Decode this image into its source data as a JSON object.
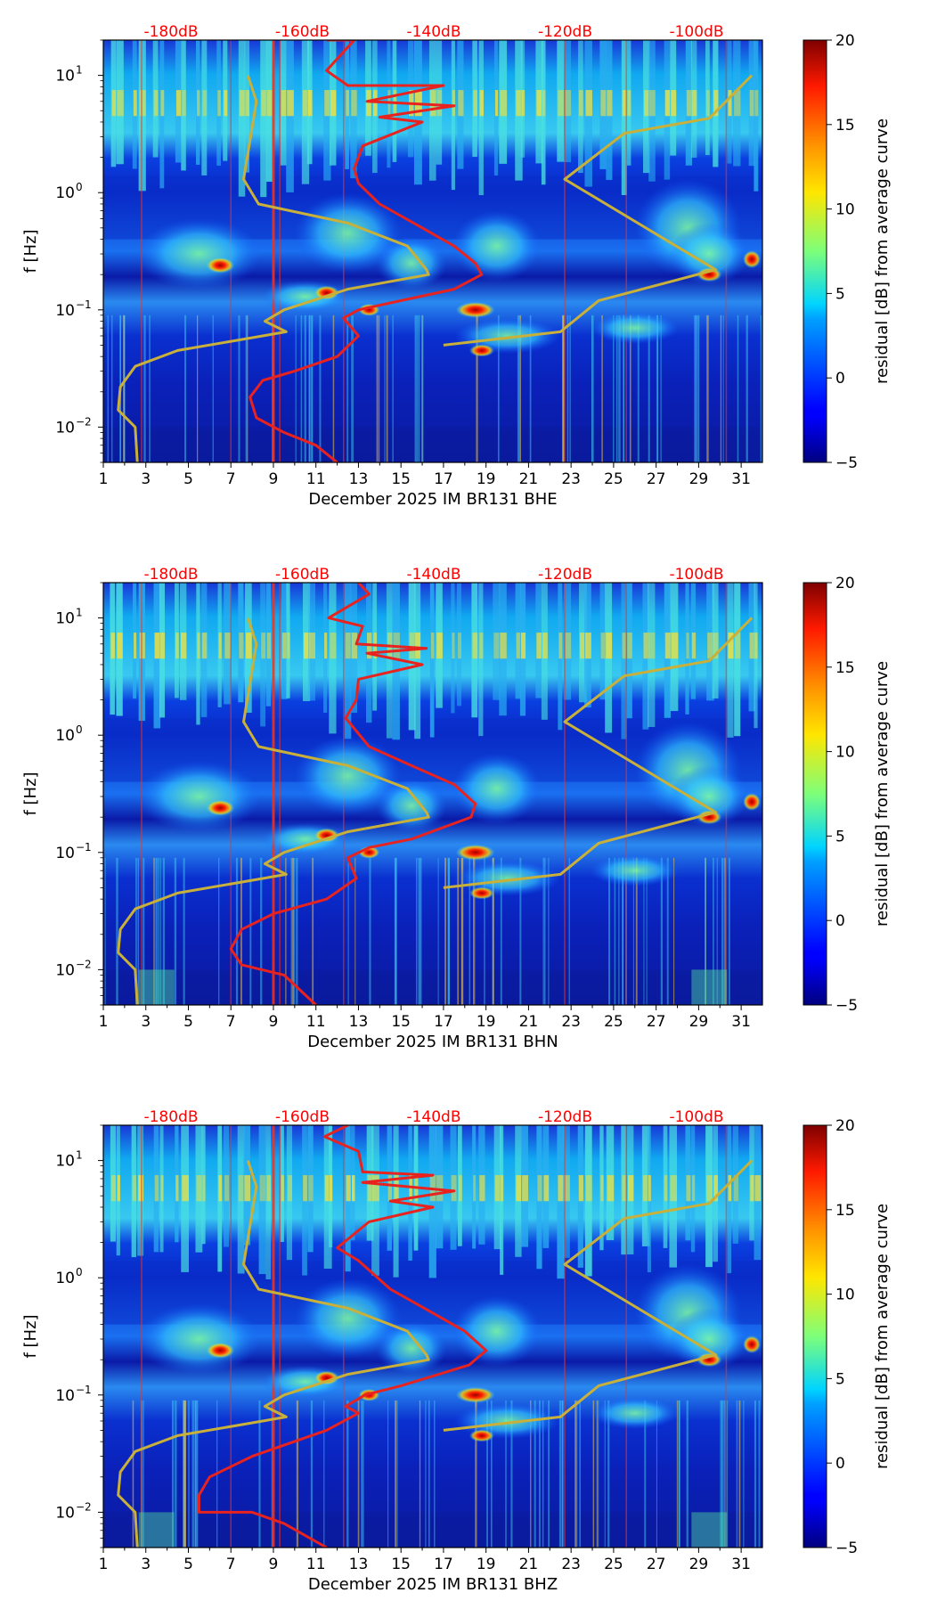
{
  "colors": {
    "red_curve": "#e8231f",
    "yellow_curve": "#c8b03a",
    "day_stripe": "#ff3010"
  },
  "chart_data": [
    {
      "type": "heatmap",
      "xlabel": "December 2025 IM BR131  BHE",
      "ylabel": "f [Hz]",
      "colorbar_label": "residual [dB] from average curve",
      "colorbar_ticks": [
        "−5",
        "0",
        "5",
        "10",
        "15",
        "20"
      ],
      "clim": [
        -5,
        20
      ],
      "x_ticks": [
        "1",
        "3",
        "5",
        "7",
        "9",
        "11",
        "13",
        "15",
        "17",
        "19",
        "21",
        "23",
        "25",
        "27",
        "29",
        "31"
      ],
      "xlim": [
        1,
        32
      ],
      "y_ticks": [
        {
          "mant": "10",
          "exp": "1"
        },
        {
          "mant": "10",
          "exp": "0"
        },
        {
          "mant": "10",
          "exp": "−1"
        },
        {
          "mant": "10",
          "exp": "−2"
        }
      ],
      "ylim": [
        0.005,
        20
      ],
      "y_scale": "log",
      "top_labels": [
        "-180dB",
        "-160dB",
        "-140dB",
        "-120dB",
        "-100dB"
      ],
      "red_curve": [
        [
          11.5,
          20
        ],
        [
          12.8,
          20
        ],
        [
          11.5,
          11
        ],
        [
          12.5,
          8.2
        ],
        [
          17.0,
          8.2
        ],
        [
          13.4,
          6
        ],
        [
          17.5,
          5.5
        ],
        [
          14.0,
          4.4
        ],
        [
          16.0,
          4.0
        ],
        [
          13.2,
          2.5
        ],
        [
          12.8,
          1.6
        ],
        [
          13.0,
          1.2
        ],
        [
          14.0,
          0.8
        ],
        [
          16.0,
          0.5
        ],
        [
          17.5,
          0.35
        ],
        [
          18.5,
          0.25
        ],
        [
          18.8,
          0.2
        ],
        [
          17.5,
          0.15
        ],
        [
          15.0,
          0.12
        ],
        [
          13.0,
          0.1
        ],
        [
          12.3,
          0.085
        ],
        [
          13.0,
          0.06
        ],
        [
          12.0,
          0.04
        ],
        [
          10.0,
          0.03
        ],
        [
          8.5,
          0.025
        ],
        [
          7.9,
          0.018
        ],
        [
          8.2,
          0.012
        ],
        [
          9.5,
          0.009
        ],
        [
          11.0,
          0.007
        ],
        [
          12.0,
          0.005
        ]
      ],
      "yellow_curve": [
        [
          7.8,
          10
        ],
        [
          8.2,
          6
        ],
        [
          7.6,
          1.3
        ],
        [
          8.3,
          0.8
        ],
        [
          12.5,
          0.55
        ],
        [
          15.3,
          0.35
        ],
        [
          16.2,
          0.22
        ],
        [
          16.3,
          0.2
        ],
        [
          12.5,
          0.15
        ],
        [
          9.5,
          0.1
        ],
        [
          8.6,
          0.08
        ],
        [
          9.6,
          0.065
        ],
        [
          8.5,
          0.06
        ],
        [
          4.5,
          0.045
        ],
        [
          2.5,
          0.033
        ],
        [
          1.8,
          0.022
        ],
        [
          1.7,
          0.014
        ],
        [
          2.5,
          0.01
        ],
        [
          2.6,
          0.005
        ]
      ],
      "yellow_curve_right": [
        [
          17.0,
          0.05
        ],
        [
          22.5,
          0.065
        ],
        [
          24.3,
          0.12
        ],
        [
          29.8,
          0.22
        ],
        [
          22.7,
          1.3
        ],
        [
          25.5,
          3.2
        ],
        [
          29.5,
          4.3
        ],
        [
          31.5,
          10
        ]
      ]
    },
    {
      "type": "heatmap",
      "xlabel": "December 2025 IM BR131  BHN",
      "ylabel": "f [Hz]",
      "colorbar_label": "residual [dB] from average curve",
      "colorbar_ticks": [
        "−5",
        "0",
        "5",
        "10",
        "15",
        "20"
      ],
      "clim": [
        -5,
        20
      ],
      "x_ticks": [
        "1",
        "3",
        "5",
        "7",
        "9",
        "11",
        "13",
        "15",
        "17",
        "19",
        "21",
        "23",
        "25",
        "27",
        "29",
        "31"
      ],
      "xlim": [
        1,
        32
      ],
      "y_ticks": [
        {
          "mant": "10",
          "exp": "1"
        },
        {
          "mant": "10",
          "exp": "0"
        },
        {
          "mant": "10",
          "exp": "−1"
        },
        {
          "mant": "10",
          "exp": "−2"
        }
      ],
      "ylim": [
        0.005,
        20
      ],
      "y_scale": "log",
      "top_labels": [
        "-180dB",
        "-160dB",
        "-140dB",
        "-120dB",
        "-100dB"
      ],
      "red_curve": [
        [
          13.0,
          20
        ],
        [
          13.5,
          16
        ],
        [
          11.6,
          10
        ],
        [
          13.2,
          8.5
        ],
        [
          12.9,
          6
        ],
        [
          16.2,
          5.5
        ],
        [
          13.4,
          5
        ],
        [
          16.0,
          4.0
        ],
        [
          13.0,
          3
        ],
        [
          12.9,
          2
        ],
        [
          12.4,
          1.4
        ],
        [
          13.5,
          0.8
        ],
        [
          15.5,
          0.55
        ],
        [
          17.5,
          0.38
        ],
        [
          18.5,
          0.26
        ],
        [
          18.3,
          0.2
        ],
        [
          15.5,
          0.13
        ],
        [
          13.5,
          0.11
        ],
        [
          12.5,
          0.09
        ],
        [
          12.9,
          0.06
        ],
        [
          11.5,
          0.04
        ],
        [
          9.0,
          0.03
        ],
        [
          7.5,
          0.022
        ],
        [
          7.0,
          0.015
        ],
        [
          7.5,
          0.011
        ],
        [
          9.5,
          0.009
        ],
        [
          11.0,
          0.005
        ]
      ],
      "yellow_curve": [
        [
          7.8,
          10
        ],
        [
          8.2,
          6
        ],
        [
          7.6,
          1.3
        ],
        [
          8.3,
          0.8
        ],
        [
          12.5,
          0.55
        ],
        [
          15.3,
          0.35
        ],
        [
          16.2,
          0.22
        ],
        [
          16.3,
          0.2
        ],
        [
          12.5,
          0.15
        ],
        [
          9.5,
          0.1
        ],
        [
          8.6,
          0.08
        ],
        [
          9.6,
          0.065
        ],
        [
          8.5,
          0.06
        ],
        [
          4.5,
          0.045
        ],
        [
          2.5,
          0.033
        ],
        [
          1.8,
          0.022
        ],
        [
          1.7,
          0.014
        ],
        [
          2.5,
          0.01
        ],
        [
          2.6,
          0.005
        ]
      ],
      "yellow_curve_right": [
        [
          17.0,
          0.05
        ],
        [
          22.5,
          0.065
        ],
        [
          24.3,
          0.12
        ],
        [
          29.8,
          0.22
        ],
        [
          22.7,
          1.3
        ],
        [
          25.5,
          3.2
        ],
        [
          29.5,
          4.3
        ],
        [
          31.5,
          10
        ]
      ]
    },
    {
      "type": "heatmap",
      "xlabel": "December 2025 IM BR131  BHZ",
      "ylabel": "f [Hz]",
      "colorbar_label": "residual [dB] from average curve",
      "colorbar_ticks": [
        "−5",
        "0",
        "5",
        "10",
        "15",
        "20"
      ],
      "clim": [
        -5,
        20
      ],
      "x_ticks": [
        "1",
        "3",
        "5",
        "7",
        "9",
        "11",
        "13",
        "15",
        "17",
        "19",
        "21",
        "23",
        "25",
        "27",
        "29",
        "31"
      ],
      "xlim": [
        1,
        32
      ],
      "y_ticks": [
        {
          "mant": "10",
          "exp": "1"
        },
        {
          "mant": "10",
          "exp": "0"
        },
        {
          "mant": "10",
          "exp": "−1"
        },
        {
          "mant": "10",
          "exp": "−2"
        }
      ],
      "ylim": [
        0.005,
        20
      ],
      "y_scale": "log",
      "top_labels": [
        "-180dB",
        "-160dB",
        "-140dB",
        "-120dB",
        "-100dB"
      ],
      "red_curve": [
        [
          12.5,
          20
        ],
        [
          11.4,
          16
        ],
        [
          13.0,
          12
        ],
        [
          13.2,
          8
        ],
        [
          16.5,
          7.5
        ],
        [
          13.2,
          6.5
        ],
        [
          17.5,
          5.5
        ],
        [
          14.5,
          4.5
        ],
        [
          16.5,
          4.0
        ],
        [
          13.5,
          3
        ],
        [
          12.0,
          1.8
        ],
        [
          13.0,
          1.4
        ],
        [
          14.5,
          0.8
        ],
        [
          16.5,
          0.5
        ],
        [
          18.0,
          0.35
        ],
        [
          19.0,
          0.24
        ],
        [
          18.2,
          0.18
        ],
        [
          15.0,
          0.12
        ],
        [
          13.3,
          0.1
        ],
        [
          12.4,
          0.08
        ],
        [
          13.0,
          0.07
        ],
        [
          11.5,
          0.05
        ],
        [
          8.0,
          0.03
        ],
        [
          6.0,
          0.02
        ],
        [
          5.5,
          0.014
        ],
        [
          5.5,
          0.01
        ],
        [
          8.0,
          0.01
        ],
        [
          9.5,
          0.008
        ],
        [
          11.5,
          0.005
        ]
      ],
      "yellow_curve": [
        [
          7.8,
          10
        ],
        [
          8.2,
          6
        ],
        [
          7.6,
          1.3
        ],
        [
          8.3,
          0.8
        ],
        [
          12.5,
          0.55
        ],
        [
          15.3,
          0.35
        ],
        [
          16.2,
          0.22
        ],
        [
          16.3,
          0.2
        ],
        [
          12.5,
          0.15
        ],
        [
          9.5,
          0.1
        ],
        [
          8.6,
          0.08
        ],
        [
          9.6,
          0.065
        ],
        [
          8.5,
          0.06
        ],
        [
          4.5,
          0.045
        ],
        [
          2.5,
          0.033
        ],
        [
          1.8,
          0.022
        ],
        [
          1.7,
          0.014
        ],
        [
          2.5,
          0.01
        ],
        [
          2.6,
          0.005
        ]
      ],
      "yellow_curve_right": [
        [
          17.0,
          0.05
        ],
        [
          22.5,
          0.065
        ],
        [
          24.3,
          0.12
        ],
        [
          29.8,
          0.22
        ],
        [
          22.7,
          1.3
        ],
        [
          25.5,
          3.2
        ],
        [
          29.5,
          4.3
        ],
        [
          31.5,
          10
        ]
      ]
    }
  ]
}
